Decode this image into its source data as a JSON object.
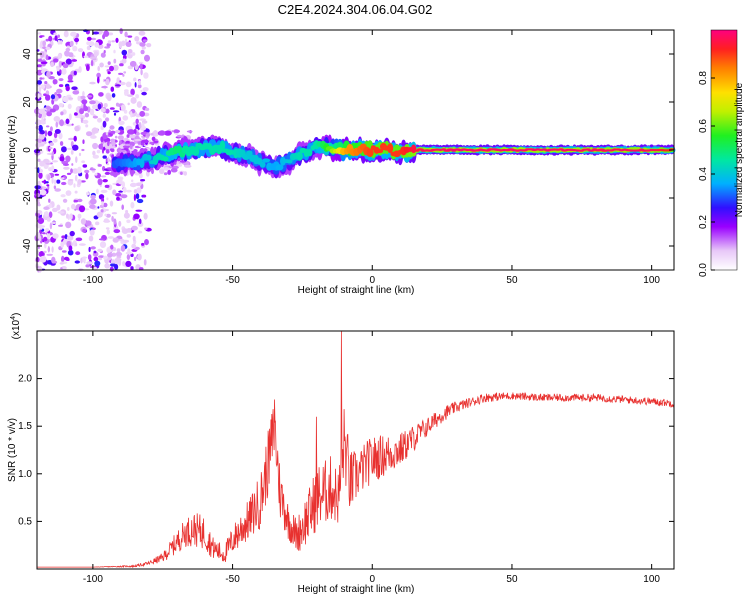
{
  "chart_data": [
    {
      "type": "heatmap",
      "title": "C2E4.2024.304.06.04.G02",
      "xlabel": "Height of straight line (km)",
      "ylabel": "Frequency (Hz)",
      "xlim": [
        -120,
        108
      ],
      "ylim": [
        -50,
        50
      ],
      "xticks": [
        -100,
        -50,
        0,
        50,
        100
      ],
      "yticks": [
        -40,
        -20,
        0,
        20,
        40
      ],
      "colorbar": {
        "label": "Normalized spectral amplitude",
        "range": [
          0,
          1
        ],
        "ticks": [
          "0.0",
          "0.2",
          "0.4",
          "0.6",
          "0.8"
        ]
      },
      "ridge": {
        "x": [
          -92,
          -85,
          -80,
          -75,
          -70,
          -65,
          -60,
          -55,
          -50,
          -45,
          -40,
          -35,
          -30,
          -25,
          -20,
          -15,
          -10,
          -5,
          0,
          5,
          10,
          15,
          20,
          30,
          40,
          50,
          60,
          70,
          80,
          90,
          100,
          108
        ],
        "freq": [
          -6,
          -5,
          -4,
          -3,
          -1,
          0,
          1,
          1,
          -1,
          -2,
          -5,
          -7,
          -5,
          -1,
          1,
          1,
          0,
          0,
          0,
          0,
          -1,
          0,
          0,
          0,
          0,
          0,
          0,
          0,
          0,
          0,
          0,
          0
        ],
        "amplitude": [
          0.3,
          0.35,
          0.4,
          0.45,
          0.5,
          0.45,
          0.45,
          0.45,
          0.45,
          0.4,
          0.4,
          0.35,
          0.4,
          0.45,
          0.45,
          0.6,
          0.8,
          0.85,
          0.9,
          0.9,
          0.9,
          0.95,
          0.97,
          0.98,
          0.98,
          0.98,
          0.98,
          0.98,
          0.97,
          0.97,
          0.97,
          0.9
        ]
      }
    },
    {
      "type": "line",
      "title": "",
      "xlabel": "Height of straight line (km)",
      "ylabel": "SNR (10 * v/v)",
      "exponent_label": "(x10",
      "exponent_sup": "4",
      "exponent_close": ")",
      "xlim": [
        -120,
        108
      ],
      "ylim": [
        0,
        2.5
      ],
      "xticks": [
        -100,
        -50,
        0,
        50,
        100
      ],
      "yticks": [
        "0.5",
        "1.0",
        "1.5",
        "2.0"
      ],
      "series": [
        {
          "color": "#e8312f",
          "x": [
            -120,
            -100,
            -85,
            -80,
            -75,
            -70,
            -67,
            -64,
            -60,
            -57,
            -53,
            -50,
            -47,
            -44,
            -40,
            -37,
            -35,
            -33,
            -30,
            -27,
            -25,
            -22,
            -20,
            -17,
            -15,
            -12,
            -10,
            -8,
            -5,
            -2,
            0,
            5,
            10,
            15,
            20,
            25,
            30,
            35,
            40,
            50,
            60,
            70,
            80,
            90,
            100,
            108
          ],
          "y": [
            0.02,
            0.02,
            0.03,
            0.06,
            0.12,
            0.28,
            0.38,
            0.42,
            0.38,
            0.22,
            0.15,
            0.3,
            0.42,
            0.52,
            0.72,
            1.15,
            1.5,
            0.8,
            0.5,
            0.35,
            0.45,
            0.6,
            0.75,
            0.8,
            0.85,
            0.75,
            1.35,
            0.9,
            1.0,
            1.1,
            1.15,
            1.2,
            1.25,
            1.38,
            1.5,
            1.62,
            1.7,
            1.75,
            1.8,
            1.82,
            1.8,
            1.8,
            1.8,
            1.78,
            1.76,
            1.74
          ],
          "noise": [
            0.0,
            0.0,
            0.01,
            0.02,
            0.05,
            0.12,
            0.15,
            0.18,
            0.18,
            0.12,
            0.1,
            0.15,
            0.2,
            0.22,
            0.3,
            0.35,
            0.35,
            0.3,
            0.2,
            0.18,
            0.25,
            0.3,
            0.35,
            0.35,
            0.35,
            0.3,
            0.4,
            0.35,
            0.25,
            0.25,
            0.25,
            0.22,
            0.18,
            0.14,
            0.1,
            0.08,
            0.06,
            0.05,
            0.05,
            0.04,
            0.04,
            0.04,
            0.04,
            0.04,
            0.04,
            0.04
          ],
          "spikes": [
            {
              "x": -35,
              "y": 1.78
            },
            {
              "x": -20,
              "y": 1.6
            },
            {
              "x": -11,
              "y": 2.5
            }
          ]
        }
      ]
    }
  ]
}
